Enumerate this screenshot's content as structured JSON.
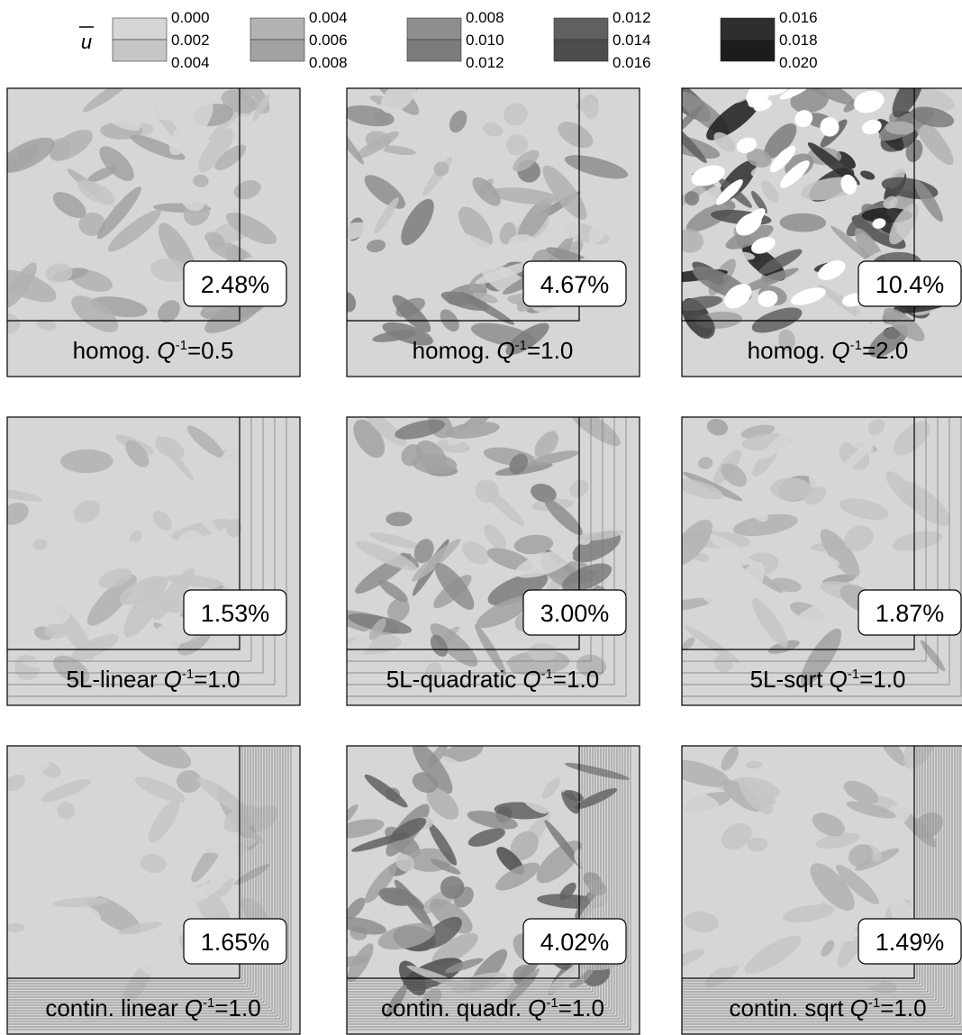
{
  "legend": {
    "symbol": "u",
    "groups": [
      {
        "labels": [
          "0.000",
          "0.002",
          "0.004"
        ],
        "colors": [
          "#d6d6d6",
          "#c6c6c6"
        ]
      },
      {
        "labels": [
          "0.004",
          "0.006",
          "0.008"
        ],
        "colors": [
          "#b2b2b2",
          "#a2a2a2"
        ]
      },
      {
        "labels": [
          "0.008",
          "0.010",
          "0.012"
        ],
        "colors": [
          "#8e8e8e",
          "#7c7c7c"
        ]
      },
      {
        "labels": [
          "0.012",
          "0.014",
          "0.016"
        ],
        "colors": [
          "#606060",
          "#4c4c4c"
        ]
      },
      {
        "labels": [
          "0.016",
          "0.018",
          "0.020"
        ],
        "colors": [
          "#2e2e2e",
          "#1c1c1c"
        ]
      }
    ]
  },
  "panels": [
    {
      "prefix": "homog.",
      "variable": "Q",
      "exponent": "-1",
      "suffix": "=0.5",
      "value_label": "2.48%"
    },
    {
      "prefix": "homog.",
      "variable": "Q",
      "exponent": "-1",
      "suffix": "=1.0",
      "value_label": "4.67%"
    },
    {
      "prefix": "homog.",
      "variable": "Q",
      "exponent": "-1",
      "suffix": "=2.0",
      "value_label": "10.4%"
    },
    {
      "prefix": "5L-linear",
      "variable": "Q",
      "exponent": "-1",
      "suffix": "=1.0",
      "value_label": "1.53%"
    },
    {
      "prefix": "5L-quadratic",
      "variable": "Q",
      "exponent": "-1",
      "suffix": "=1.0",
      "value_label": "3.00%"
    },
    {
      "prefix": "5L-sqrt",
      "variable": "Q",
      "exponent": "-1",
      "suffix": "=1.0",
      "value_label": "1.87%"
    },
    {
      "prefix": "contin. linear",
      "variable": "Q",
      "exponent": "-1",
      "suffix": "=1.0",
      "value_label": "1.65%"
    },
    {
      "prefix": "contin. quadr.",
      "variable": "Q",
      "exponent": "-1",
      "suffix": "=1.0",
      "value_label": "4.02%"
    },
    {
      "prefix": "contin. sqrt",
      "variable": "Q",
      "exponent": "-1",
      "suffix": "=1.0",
      "value_label": "1.49%"
    }
  ]
}
